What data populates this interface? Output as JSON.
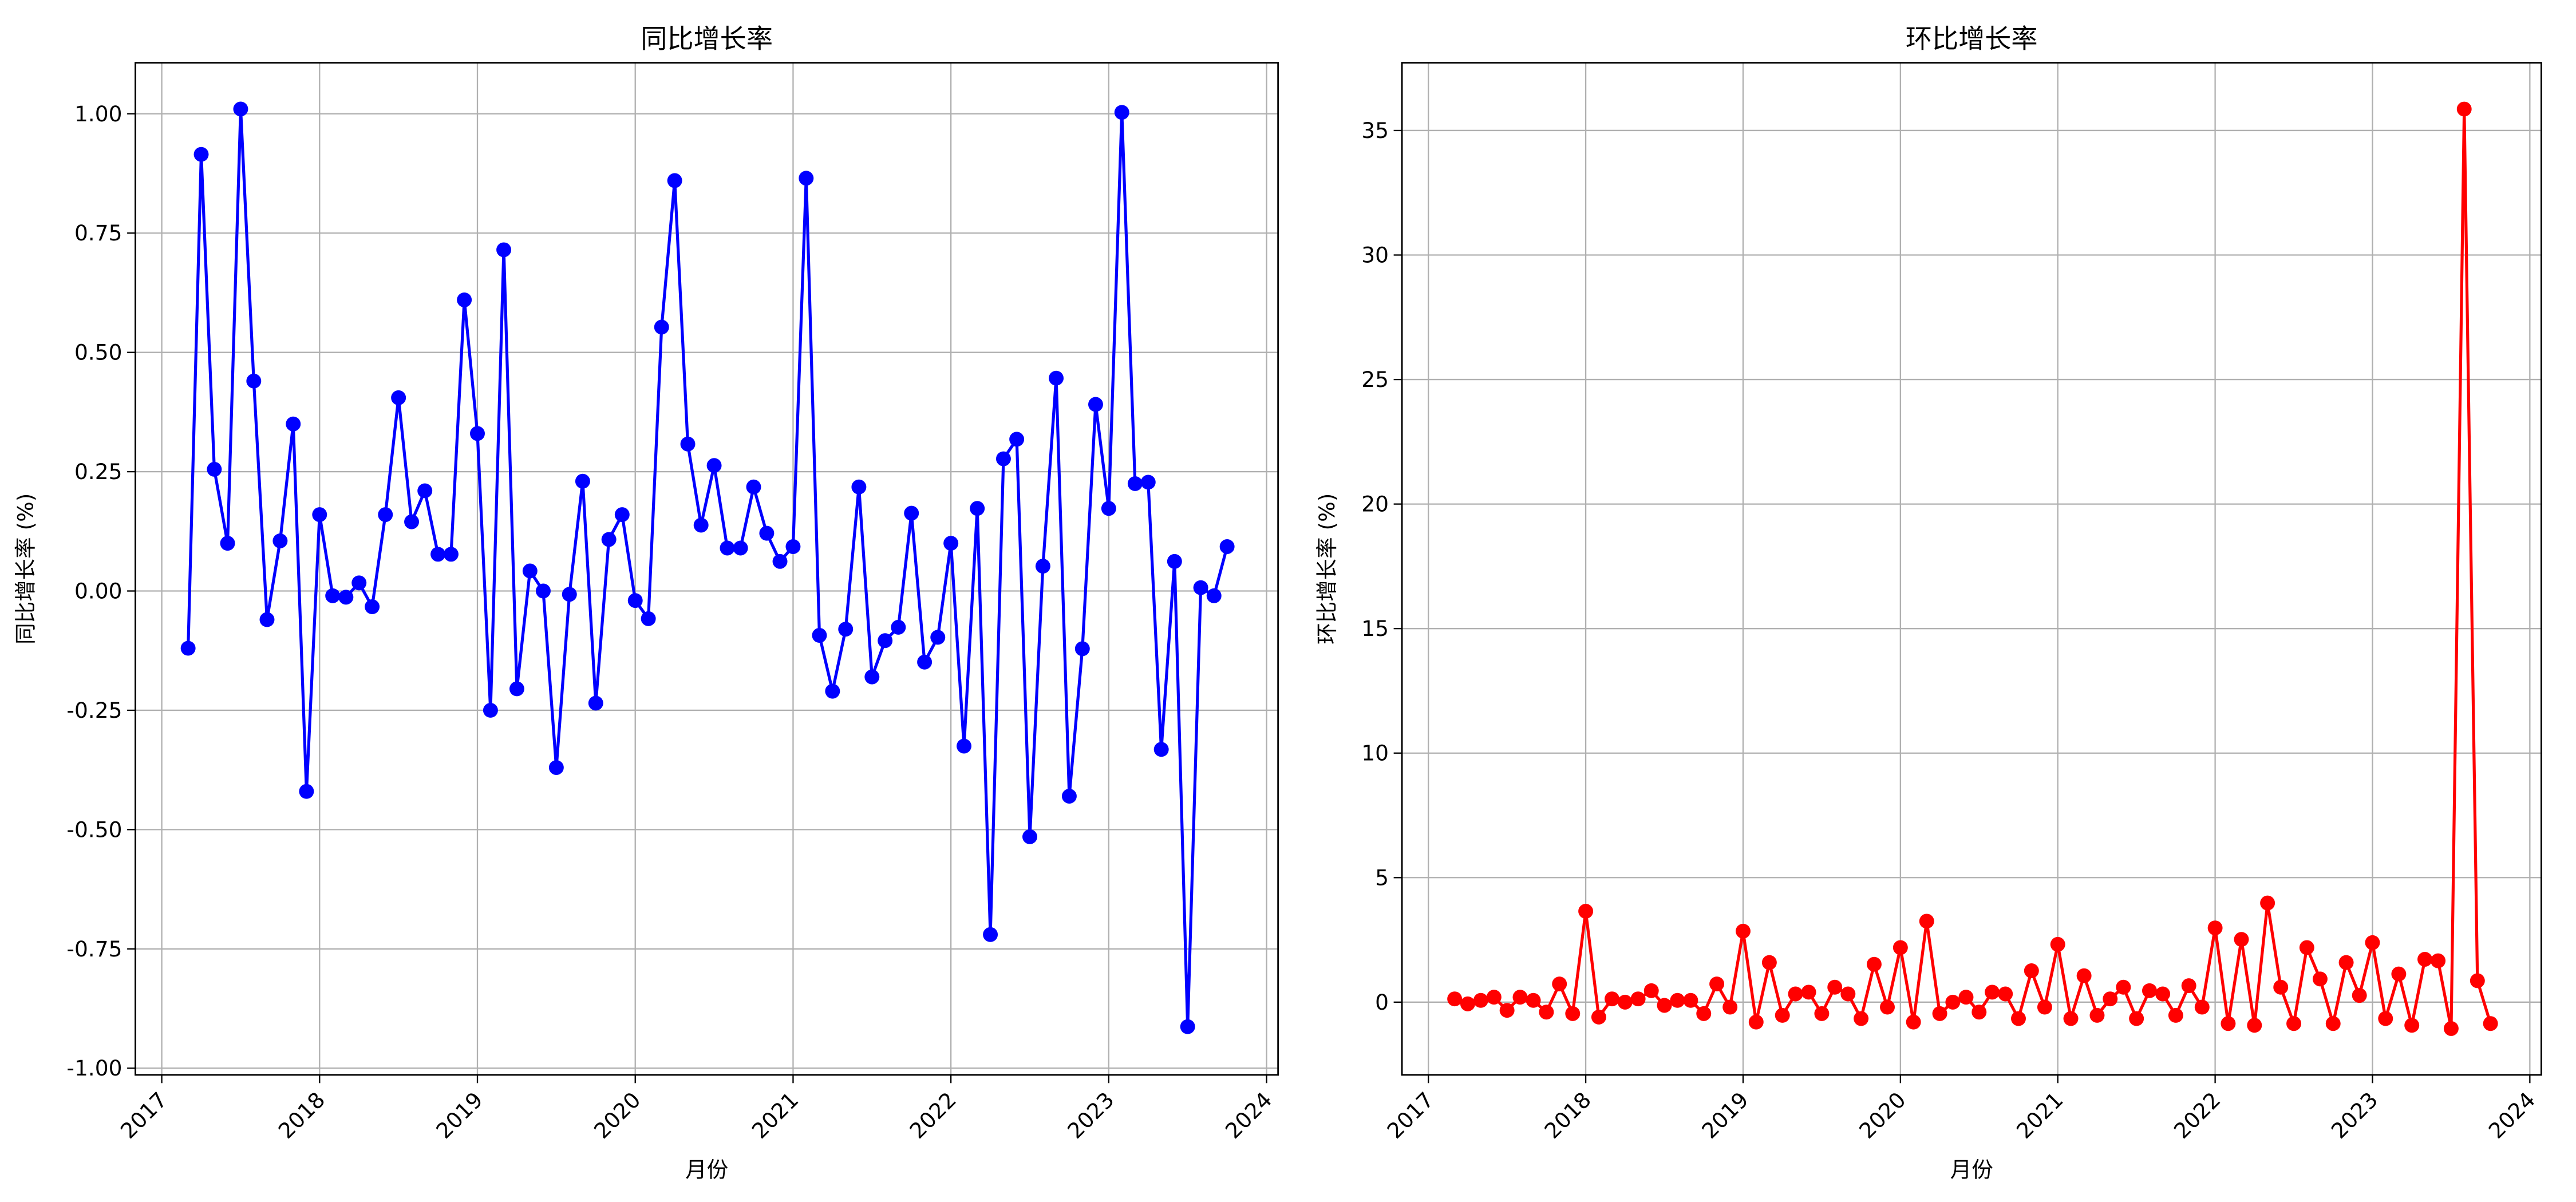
{
  "chart_data": [
    {
      "type": "line",
      "title": "同比增长率",
      "xlabel": "月份",
      "ylabel": "同比增长率 (%)",
      "color": "#0000ff",
      "grid": true,
      "x": [
        2017.167,
        2017.25,
        2017.333,
        2017.417,
        2017.5,
        2017.583,
        2017.667,
        2017.75,
        2017.833,
        2017.917,
        2018.0,
        2018.083,
        2018.167,
        2018.25,
        2018.333,
        2018.417,
        2018.5,
        2018.583,
        2018.667,
        2018.75,
        2018.833,
        2018.917,
        2019.0,
        2019.083,
        2019.167,
        2019.25,
        2019.333,
        2019.417,
        2019.5,
        2019.583,
        2019.667,
        2019.75,
        2019.833,
        2019.917,
        2020.0,
        2020.083,
        2020.167,
        2020.25,
        2020.333,
        2020.417,
        2020.5,
        2020.583,
        2020.667,
        2020.75,
        2020.833,
        2020.917,
        2021.0,
        2021.083,
        2021.167,
        2021.25,
        2021.333,
        2021.417,
        2021.5,
        2021.583,
        2021.667,
        2021.75,
        2021.833,
        2021.917,
        2022.0,
        2022.083,
        2022.167,
        2022.25,
        2022.333,
        2022.417,
        2022.5,
        2022.583,
        2022.667,
        2022.75,
        2022.833,
        2022.917,
        2023.0,
        2023.083,
        2023.167,
        2023.25,
        2023.333,
        2023.417,
        2023.5,
        2023.583,
        2023.667,
        2023.75
      ],
      "values": [
        -0.12,
        0.915,
        0.255,
        0.1,
        1.01,
        0.44,
        -0.06,
        0.105,
        0.35,
        -0.42,
        0.16,
        -0.01,
        -0.013,
        0.017,
        -0.033,
        0.16,
        0.405,
        0.145,
        0.21,
        0.077,
        0.077,
        0.61,
        0.33,
        -0.25,
        0.715,
        -0.205,
        0.042,
        0.0,
        -0.37,
        -0.007,
        0.23,
        -0.235,
        0.108,
        0.16,
        -0.02,
        -0.058,
        0.553,
        0.86,
        0.308,
        0.138,
        0.263,
        0.09,
        0.09,
        0.218,
        0.121,
        0.062,
        0.093,
        0.865,
        -0.093,
        -0.21,
        -0.08,
        0.218,
        -0.18,
        -0.104,
        -0.076,
        0.163,
        -0.149,
        -0.097,
        0.1,
        -0.325,
        0.173,
        -0.72,
        0.277,
        0.318,
        -0.515,
        0.052,
        0.446,
        -0.43,
        -0.121,
        0.391,
        0.173,
        1.003,
        0.225,
        0.228,
        -0.332,
        0.062,
        -0.913,
        0.007,
        -0.01,
        0.093
      ],
      "xlim": [
        2016.833,
        2024.073
      ],
      "xticks": [
        2017,
        2018,
        2019,
        2020,
        2021,
        2022,
        2023,
        2024
      ],
      "ylim": [
        -1.014,
        1.107
      ],
      "yticks": [
        {
          "value": -1,
          "label": "-1.00"
        },
        {
          "value": -0.75,
          "label": "-0.75"
        },
        {
          "value": -0.5,
          "label": "-0.50"
        },
        {
          "value": -0.25,
          "label": "-0.25"
        },
        {
          "value": 0,
          "label": "0.00"
        },
        {
          "value": 0.25,
          "label": "0.25"
        },
        {
          "value": 0.5,
          "label": "0.50"
        },
        {
          "value": 0.75,
          "label": "0.75"
        },
        {
          "value": 1,
          "label": "1.00"
        }
      ]
    },
    {
      "type": "line",
      "title": "环比增长率",
      "xlabel": "月份",
      "ylabel": "环比增长率 (%)",
      "color": "#ff0000",
      "grid": true,
      "x": [
        2017.167,
        2017.25,
        2017.333,
        2017.417,
        2017.5,
        2017.583,
        2017.667,
        2017.75,
        2017.833,
        2017.917,
        2018.0,
        2018.083,
        2018.167,
        2018.25,
        2018.333,
        2018.417,
        2018.5,
        2018.583,
        2018.667,
        2018.75,
        2018.833,
        2018.917,
        2019.0,
        2019.083,
        2019.167,
        2019.25,
        2019.333,
        2019.417,
        2019.5,
        2019.583,
        2019.667,
        2019.75,
        2019.833,
        2019.917,
        2020.0,
        2020.083,
        2020.167,
        2020.25,
        2020.333,
        2020.417,
        2020.5,
        2020.583,
        2020.667,
        2020.75,
        2020.833,
        2020.917,
        2021.0,
        2021.083,
        2021.167,
        2021.25,
        2021.333,
        2021.417,
        2021.5,
        2021.583,
        2021.667,
        2021.75,
        2021.833,
        2021.917,
        2022.0,
        2022.083,
        2022.167,
        2022.25,
        2022.333,
        2022.417,
        2022.5,
        2022.583,
        2022.667,
        2022.75,
        2022.833,
        2022.917,
        2023.0,
        2023.083,
        2023.167,
        2023.25,
        2023.333,
        2023.417,
        2023.5,
        2023.583,
        2023.667,
        2023.75
      ],
      "values": [
        0.13,
        -0.07,
        0.07,
        0.2,
        -0.33,
        0.2,
        0.07,
        -0.4,
        0.73,
        -0.46,
        3.65,
        -0.6,
        0.13,
        0.0,
        0.13,
        0.46,
        -0.13,
        0.07,
        0.07,
        -0.46,
        0.73,
        -0.2,
        2.85,
        -0.8,
        1.59,
        -0.53,
        0.33,
        0.4,
        -0.46,
        0.6,
        0.33,
        -0.66,
        1.52,
        -0.2,
        2.19,
        -0.8,
        3.25,
        -0.46,
        0.0,
        0.2,
        -0.4,
        0.4,
        0.33,
        -0.66,
        1.26,
        -0.2,
        2.32,
        -0.66,
        1.06,
        -0.53,
        0.13,
        0.6,
        -0.66,
        0.46,
        0.33,
        -0.53,
        0.66,
        -0.2,
        2.98,
        -0.86,
        2.52,
        -0.93,
        3.98,
        0.6,
        -0.86,
        2.19,
        0.93,
        -0.86,
        1.59,
        0.27,
        2.39,
        -0.66,
        1.13,
        -0.93,
        1.72,
        1.66,
        -1.06,
        35.86,
        0.86,
        -0.86
      ],
      "xlim": [
        2016.832,
        2024.073
      ],
      "xticks": [
        2017,
        2018,
        2019,
        2020,
        2021,
        2022,
        2023,
        2024
      ],
      "ylim": [
        -2.92,
        37.72
      ],
      "yticks": [
        0,
        5,
        10,
        15,
        20,
        25,
        30,
        35
      ]
    }
  ]
}
